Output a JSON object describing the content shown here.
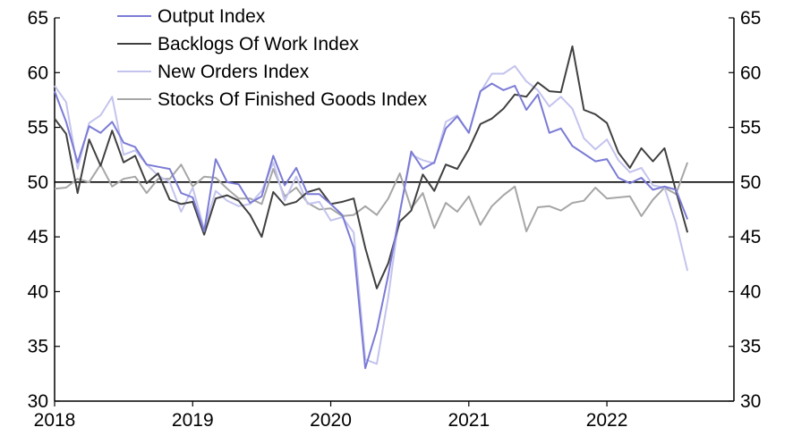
{
  "chart_data": {
    "type": "line",
    "title": "",
    "xlabel": "",
    "ylabel": "",
    "ylim": [
      30,
      65
    ],
    "yticks": [
      30,
      35,
      40,
      45,
      50,
      55,
      60,
      65
    ],
    "y_tick_labels": [
      "30",
      "35",
      "40",
      "45",
      "50",
      "55",
      "60",
      "65"
    ],
    "xlim": [
      2018.0,
      2022.92
    ],
    "xticks": [
      2018,
      2019,
      2020,
      2021,
      2022
    ],
    "x_tick_labels": [
      "2018",
      "2019",
      "2020",
      "2021",
      "2022"
    ],
    "reference_line": 50,
    "dual_y_axis": true,
    "grid": false,
    "legend_position": "top-left",
    "x_start": "2018-01",
    "x_step": "month",
    "series": [
      {
        "name": "Output Index",
        "color": "#7b7bd6",
        "values": [
          58.3,
          55.5,
          51.8,
          55.1,
          54.5,
          55.5,
          53.6,
          53.2,
          51.6,
          51.4,
          51.2,
          49.0,
          48.6,
          45.5,
          52.1,
          50.0,
          49.8,
          48.1,
          48.7,
          52.4,
          49.7,
          51.3,
          48.9,
          48.9,
          48.0,
          47.0,
          44.0,
          33.0,
          36.5,
          41.5,
          47.2,
          52.8,
          51.2,
          51.8,
          54.9,
          56.0,
          54.5,
          58.3,
          59.0,
          58.4,
          58.8,
          56.6,
          58.0,
          54.5,
          54.9,
          53.3,
          52.6,
          51.9,
          52.1,
          50.4,
          49.9,
          50.4,
          49.3,
          49.6,
          49.3,
          46.6
        ]
      },
      {
        "name": "Backlogs Of Work Index",
        "color": "#404040",
        "values": [
          55.8,
          54.4,
          49.0,
          53.9,
          51.5,
          54.7,
          51.8,
          52.4,
          49.9,
          50.8,
          48.4,
          48.0,
          48.2,
          45.2,
          48.5,
          48.8,
          48.3,
          47.0,
          45.0,
          49.1,
          47.9,
          48.2,
          49.1,
          49.4,
          48.0,
          48.2,
          48.5,
          44.0,
          40.3,
          42.6,
          46.4,
          47.4,
          50.7,
          49.2,
          51.6,
          51.2,
          53.0,
          55.3,
          55.8,
          56.7,
          58.0,
          57.8,
          59.1,
          58.3,
          58.2,
          62.4,
          56.6,
          56.2,
          55.4,
          52.7,
          51.3,
          53.1,
          51.9,
          53.1,
          49.2,
          45.4
        ]
      },
      {
        "name": "New Orders Index",
        "color": "#c3c3ee",
        "values": [
          58.8,
          57.3,
          51.2,
          55.4,
          56.1,
          57.8,
          52.5,
          52.9,
          51.6,
          50.6,
          50.0,
          47.3,
          49.5,
          45.7,
          49.2,
          48.3,
          47.8,
          48.0,
          49.2,
          51.8,
          48.3,
          50.5,
          48.0,
          48.2,
          46.5,
          46.8,
          45.4,
          33.8,
          33.4,
          39.5,
          47.3,
          52.5,
          52.0,
          51.7,
          55.5,
          56.1,
          54.5,
          58.2,
          59.9,
          59.9,
          60.6,
          59.2,
          58.4,
          56.9,
          57.8,
          56.7,
          54.0,
          53.0,
          53.9,
          52.0,
          50.9,
          51.3,
          49.7,
          49.5,
          46.3,
          41.9
        ]
      },
      {
        "name": "Stocks Of Finished Goods Index",
        "color": "#a6a6a6",
        "values": [
          49.4,
          49.5,
          50.3,
          50.0,
          51.6,
          49.6,
          50.3,
          50.5,
          49.0,
          50.3,
          50.3,
          51.6,
          49.6,
          50.5,
          50.4,
          49.4,
          48.5,
          48.5,
          48.0,
          51.2,
          48.7,
          49.5,
          48.1,
          47.5,
          47.6,
          46.9,
          47.0,
          47.8,
          47.0,
          48.5,
          50.8,
          47.6,
          49.0,
          45.8,
          48.1,
          47.3,
          48.7,
          46.1,
          47.8,
          48.8,
          49.6,
          45.5,
          47.7,
          47.8,
          47.4,
          48.1,
          48.3,
          49.5,
          48.5,
          48.6,
          48.7,
          46.9,
          48.4,
          49.5,
          48.9,
          51.8
        ]
      }
    ]
  }
}
